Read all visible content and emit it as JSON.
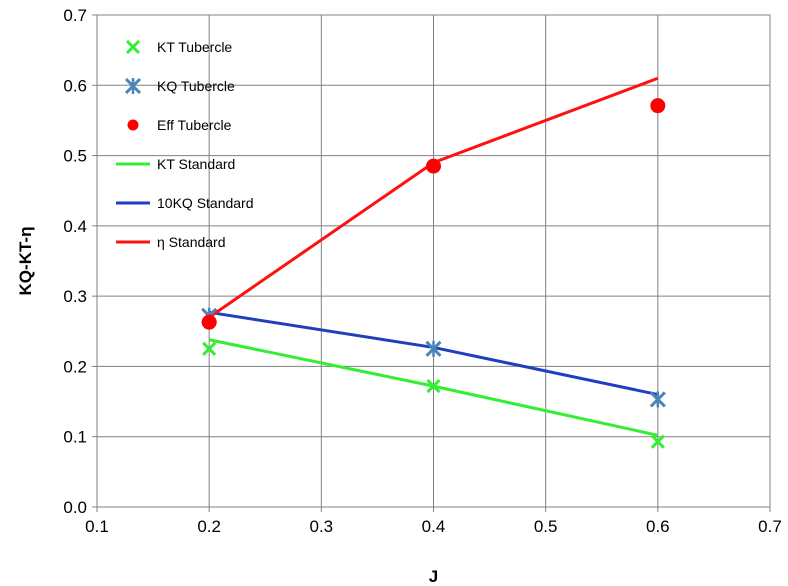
{
  "chart_data": {
    "type": "line",
    "xlabel": "J",
    "ylabel": "KQ-KT-η",
    "xlim": [
      0.1,
      0.7
    ],
    "ylim": [
      0,
      0.7
    ],
    "xticks": [
      "0.1",
      "0.2",
      "0.3",
      "0.4",
      "0.5",
      "0.6",
      "0.7"
    ],
    "yticks": [
      "0.0",
      "0.1",
      "0.2",
      "0.3",
      "0.4",
      "0.5",
      "0.6",
      "0.7"
    ],
    "grid": true,
    "legend_position": "top-left",
    "series": [
      {
        "name": "KT Tubercle",
        "kind": "marker",
        "marker": "x",
        "color": "#33ee33",
        "x": [
          0.2,
          0.4,
          0.6
        ],
        "y": [
          0.225,
          0.172,
          0.093
        ]
      },
      {
        "name": "KQ Tubercle",
        "kind": "marker",
        "marker": "star",
        "color": "#4a86b8",
        "x": [
          0.2,
          0.4,
          0.6
        ],
        "y": [
          0.272,
          0.225,
          0.153
        ]
      },
      {
        "name": "Eff Tubercle",
        "kind": "marker",
        "marker": "circle",
        "color": "#ff0000",
        "x": [
          0.2,
          0.4,
          0.6
        ],
        "y": [
          0.263,
          0.485,
          0.571
        ]
      },
      {
        "name": "KT Standard",
        "kind": "line",
        "color": "#33ee33",
        "x": [
          0.2,
          0.4,
          0.6
        ],
        "y": [
          0.238,
          0.172,
          0.102
        ]
      },
      {
        "name": "10KQ Standard",
        "kind": "line",
        "color": "#1f3fbf",
        "x": [
          0.2,
          0.4,
          0.6
        ],
        "y": [
          0.277,
          0.227,
          0.16
        ]
      },
      {
        "name": "η Standard",
        "kind": "line",
        "color": "#ff1111",
        "x": [
          0.2,
          0.4,
          0.6
        ],
        "y": [
          0.27,
          0.49,
          0.61
        ]
      }
    ]
  }
}
